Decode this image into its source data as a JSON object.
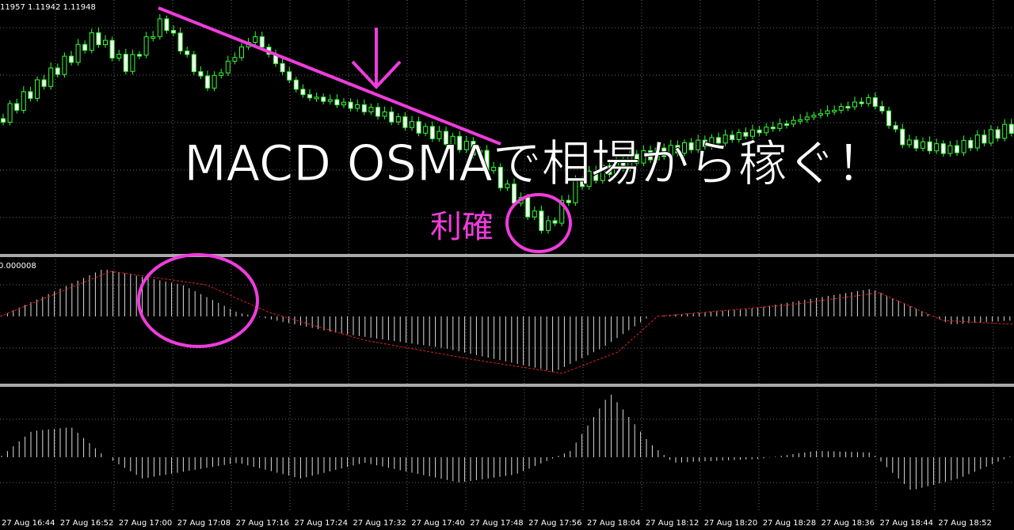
{
  "header": {
    "price_info": "11957 1.11942 1.11948",
    "indicator_value": "0.000008"
  },
  "overlay": {
    "title": "MACD OSMAで相場から稼ぐ！",
    "annotation": "利確"
  },
  "x_axis": {
    "labels": [
      "27 Aug 16:44",
      "27 Aug 16:52",
      "27 Aug 17:00",
      "27 Aug 17:08",
      "27 Aug 17:16",
      "27 Aug 17:24",
      "27 Aug 17:32",
      "27 Aug 17:40",
      "27 Aug 17:48",
      "27 Aug 17:56",
      "27 Aug 18:04",
      "27 Aug 18:12",
      "27 Aug 18:20",
      "27 Aug 18:28",
      "27 Aug 18:36",
      "27 Aug 18:44",
      "27 Aug 18:52"
    ]
  }
}
